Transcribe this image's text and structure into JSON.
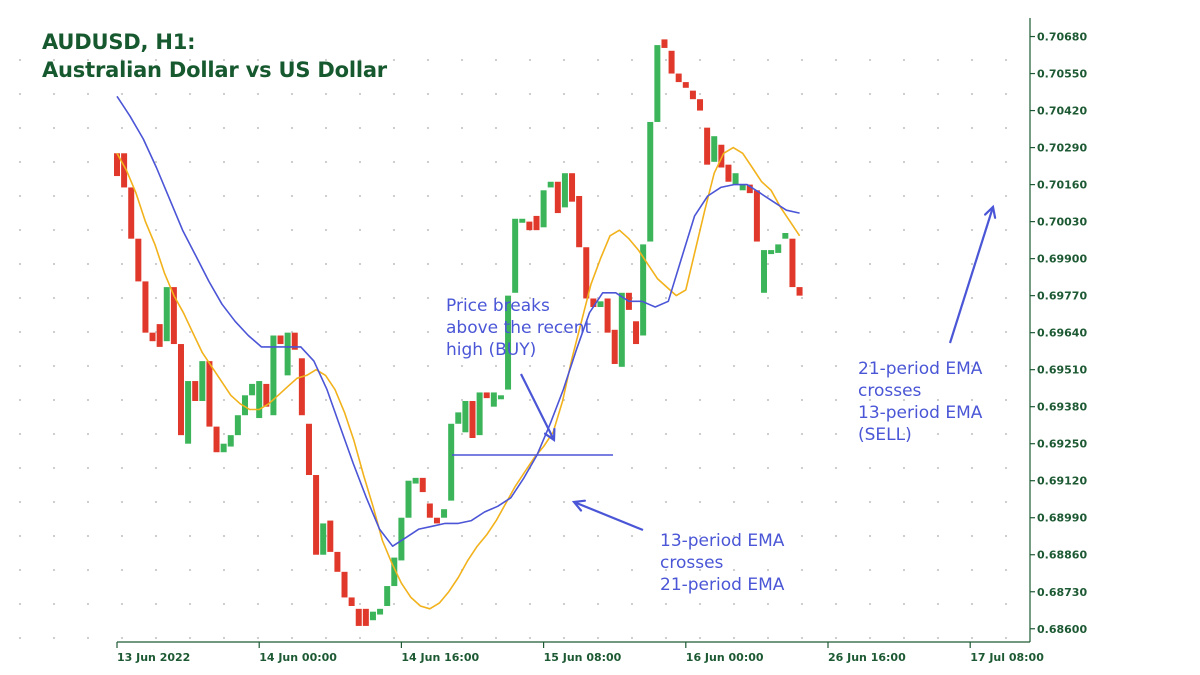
{
  "title": {
    "line1": "AUDUSD, H1:",
    "line2": "Australian Dollar vs  US Dollar"
  },
  "annotations": {
    "buy": [
      "Price breaks",
      "above the recent",
      "high (BUY)"
    ],
    "cross_up": [
      "13-period EMA",
      "crosses",
      "21-period EMA"
    ],
    "cross_down": [
      "21-period EMA",
      "crosses",
      "13-period EMA",
      "(SELL)"
    ]
  },
  "colors": {
    "bull": "#3cb55a",
    "bear": "#e0392b",
    "ema13": "#f2b21c",
    "ema21": "#4b55d6",
    "axis": "#1d5a33",
    "text": "#17592f",
    "annotation": "#4a56d6",
    "grid_dot": "#c9c9c9"
  },
  "chart_data": {
    "type": "candlestick",
    "symbol": "AUDUSD",
    "timeframe": "H1",
    "y_ticks": [
      "0.70680",
      "0.70550",
      "0.70420",
      "0.70290",
      "0.70160",
      "0.70030",
      "0.69900",
      "0.69770",
      "0.69640",
      "0.69510",
      "0.69380",
      "0.69250",
      "0.69120",
      "0.68990",
      "0.68860",
      "0.68730",
      "0.68600"
    ],
    "ylim": [
      0.6855,
      0.7071
    ],
    "x_ticks": [
      "13 Jun 2022",
      "14 Jun 00:00",
      "14 Jun 16:00",
      "15 Jun 08:00",
      "16 Jun 00:00",
      "26 Jun 16:00",
      "17 Jul 08:00"
    ],
    "x_tick_bar_index": [
      0,
      20,
      40,
      60,
      80,
      100,
      120
    ],
    "grid": "dotted",
    "candles": [
      [
        0.7027,
        0.7019,
        0.7019,
        0.7019
      ],
      [
        0.7027,
        0.7015,
        0.7015,
        0.7015
      ],
      [
        0.7015,
        0.6997,
        0.6997,
        0.6997
      ],
      [
        0.6997,
        0.6982,
        0.6982,
        0.6982
      ],
      [
        0.6982,
        0.6964,
        0.6964,
        0.6964
      ],
      [
        0.6964,
        0.6961,
        0.6961,
        0.6961
      ],
      [
        0.6967,
        0.6959,
        0.6959,
        0.6959
      ],
      [
        0.6961,
        0.698,
        0.6961,
        0.698
      ],
      [
        0.698,
        0.696,
        0.696,
        0.696
      ],
      [
        0.696,
        0.6928,
        0.6928,
        0.6928
      ],
      [
        0.6925,
        0.6947,
        0.6925,
        0.6947
      ],
      [
        0.6947,
        0.694,
        0.694,
        0.694
      ],
      [
        0.694,
        0.6954,
        0.694,
        0.6954
      ],
      [
        0.6954,
        0.6931,
        0.6931,
        0.6931
      ],
      [
        0.6931,
        0.6922,
        0.6922,
        0.6922
      ],
      [
        0.6922,
        0.6925,
        0.6922,
        0.6925
      ],
      [
        0.6924,
        0.6928,
        0.6924,
        0.6928
      ],
      [
        0.6928,
        0.6935,
        0.6928,
        0.6935
      ],
      [
        0.6935,
        0.6942,
        0.6935,
        0.6942
      ],
      [
        0.6942,
        0.6946,
        0.6942,
        0.6946
      ],
      [
        0.6934,
        0.6947,
        0.6934,
        0.6947
      ],
      [
        0.6946,
        0.6938,
        0.6938,
        0.6938
      ],
      [
        0.6935,
        0.6963,
        0.6935,
        0.6963
      ],
      [
        0.6963,
        0.696,
        0.696,
        0.696
      ],
      [
        0.6949,
        0.6964,
        0.6949,
        0.6964
      ],
      [
        0.6964,
        0.6958,
        0.6958,
        0.6958
      ],
      [
        0.6955,
        0.6935,
        0.6935,
        0.6935
      ],
      [
        0.6932,
        0.6914,
        0.6914,
        0.6914
      ],
      [
        0.6914,
        0.6886,
        0.6886,
        0.6886
      ],
      [
        0.6886,
        0.6897,
        0.6886,
        0.6897
      ],
      [
        0.6898,
        0.6887,
        0.6887,
        0.6887
      ],
      [
        0.6887,
        0.688,
        0.688,
        0.688
      ],
      [
        0.688,
        0.6871,
        0.6871,
        0.6871
      ],
      [
        0.6871,
        0.6868,
        0.6868,
        0.6868
      ],
      [
        0.6867,
        0.6861,
        0.6861,
        0.6861
      ],
      [
        0.6867,
        0.6861,
        0.6861,
        0.6861
      ],
      [
        0.6863,
        0.6866,
        0.6863,
        0.6866
      ],
      [
        0.6865,
        0.6867,
        0.6865,
        0.6867
      ],
      [
        0.6868,
        0.6875,
        0.6868,
        0.6875
      ],
      [
        0.6875,
        0.6885,
        0.6875,
        0.6885
      ],
      [
        0.6884,
        0.6899,
        0.6884,
        0.6899
      ],
      [
        0.6899,
        0.6912,
        0.6899,
        0.6912
      ],
      [
        0.6911,
        0.6913,
        0.6911,
        0.6913
      ],
      [
        0.6913,
        0.6908,
        0.6908,
        0.6908
      ],
      [
        0.6904,
        0.6899,
        0.6899,
        0.6899
      ],
      [
        0.6899,
        0.6897,
        0.6897,
        0.6897
      ],
      [
        0.6899,
        0.6902,
        0.6899,
        0.6902
      ],
      [
        0.6905,
        0.6932,
        0.6905,
        0.6932
      ],
      [
        0.6932,
        0.6936,
        0.6932,
        0.6936
      ],
      [
        0.6929,
        0.694,
        0.6929,
        0.694
      ],
      [
        0.694,
        0.6927,
        0.6927,
        0.6927
      ],
      [
        0.6928,
        0.6943,
        0.6928,
        0.6943
      ],
      [
        0.6943,
        0.6941,
        0.6941,
        0.6941
      ],
      [
        0.6938,
        0.6943,
        0.6938,
        0.6943
      ],
      [
        0.6942,
        0.6942,
        0.6942,
        0.6942
      ],
      [
        0.6944,
        0.6977,
        0.6944,
        0.6977
      ],
      [
        0.6978,
        0.7004,
        0.6978,
        0.7004
      ],
      [
        0.7003,
        0.7004,
        0.7003,
        0.7004
      ],
      [
        0.7003,
        0.7,
        0.7,
        0.7
      ],
      [
        0.7005,
        0.7,
        0.7,
        0.7
      ],
      [
        0.7001,
        0.7014,
        0.7001,
        0.7014
      ],
      [
        0.7015,
        0.7017,
        0.7015,
        0.7017
      ],
      [
        0.7017,
        0.7006,
        0.7006,
        0.7006
      ],
      [
        0.7008,
        0.702,
        0.7008,
        0.702
      ],
      [
        0.702,
        0.701,
        0.701,
        0.701
      ],
      [
        0.7012,
        0.6994,
        0.6994,
        0.6994
      ],
      [
        0.6994,
        0.6976,
        0.6976,
        0.6976
      ],
      [
        0.6976,
        0.6973,
        0.6973,
        0.6973
      ],
      [
        0.6973,
        0.6975,
        0.6973,
        0.6975
      ],
      [
        0.6976,
        0.6964,
        0.6964,
        0.6964
      ],
      [
        0.6965,
        0.6953,
        0.6953,
        0.6953
      ],
      [
        0.6952,
        0.6978,
        0.6952,
        0.6978
      ],
      [
        0.6978,
        0.6972,
        0.6972,
        0.6972
      ],
      [
        0.6968,
        0.696,
        0.696,
        0.696
      ],
      [
        0.6963,
        0.6995,
        0.6963,
        0.6995
      ],
      [
        0.6996,
        0.7038,
        0.6996,
        0.7038
      ],
      [
        0.7038,
        0.7065,
        0.7038,
        0.7065
      ],
      [
        0.7067,
        0.7064,
        0.7064,
        0.7064
      ],
      [
        0.7063,
        0.7055,
        0.7055,
        0.7055
      ],
      [
        0.7055,
        0.7052,
        0.7052,
        0.7052
      ],
      [
        0.7052,
        0.705,
        0.705,
        0.705
      ],
      [
        0.7049,
        0.7046,
        0.7046,
        0.7046
      ],
      [
        0.7046,
        0.7042,
        0.7042,
        0.7042
      ],
      [
        0.7036,
        0.7023,
        0.7023,
        0.7023
      ],
      [
        0.7024,
        0.7033,
        0.7024,
        0.7033
      ],
      [
        0.703,
        0.7022,
        0.7022,
        0.7022
      ],
      [
        0.7023,
        0.7017,
        0.7017,
        0.7017
      ],
      [
        0.7016,
        0.702,
        0.7016,
        0.702
      ],
      [
        0.7014,
        0.7016,
        0.7014,
        0.7016
      ],
      [
        0.7016,
        0.7013,
        0.7013,
        0.7013
      ],
      [
        0.7014,
        0.6996,
        0.6996,
        0.6996
      ],
      [
        0.6978,
        0.6993,
        0.6978,
        0.6993
      ],
      [
        0.6993,
        0.6993,
        0.6993,
        0.6993
      ],
      [
        0.6992,
        0.6995,
        0.6992,
        0.6995
      ],
      [
        0.6997,
        0.6999,
        0.6997,
        0.6999
      ],
      [
        0.6997,
        0.698,
        0.698,
        0.698
      ],
      [
        0.698,
        0.6977,
        0.6977,
        0.6977
      ]
    ],
    "ema13": [
      0.7027,
      0.7021,
      0.7013,
      0.7003,
      0.6995,
      0.6985,
      0.6977,
      0.6971,
      0.6964,
      0.6957,
      0.6952,
      0.6947,
      0.6942,
      0.6939,
      0.6937,
      0.6937,
      0.6939,
      0.6942,
      0.6945,
      0.6948,
      0.6949,
      0.6951,
      0.6949,
      0.6944,
      0.6936,
      0.6926,
      0.6914,
      0.6903,
      0.6891,
      0.6883,
      0.6876,
      0.6871,
      0.6868,
      0.6867,
      0.6869,
      0.6873,
      0.6878,
      0.6884,
      0.6889,
      0.6893,
      0.6898,
      0.6904,
      0.691,
      0.6915,
      0.692,
      0.6924,
      0.6929,
      0.694,
      0.6955,
      0.6968,
      0.6981,
      0.699,
      0.6998,
      0.7,
      0.6997,
      0.6993,
      0.6988,
      0.6983,
      0.698,
      0.6977,
      0.6979,
      0.6993,
      0.7007,
      0.702,
      0.7027,
      0.7029,
      0.7027,
      0.7022,
      0.7017,
      0.7014,
      0.7008,
      0.7003,
      0.6998
    ],
    "ema21": [
      0.7047,
      0.704,
      0.7032,
      0.7022,
      0.7011,
      0.7,
      0.6991,
      0.6982,
      0.6974,
      0.6968,
      0.6963,
      0.6959,
      0.6959,
      0.6959,
      0.6959,
      0.6954,
      0.6944,
      0.6931,
      0.6918,
      0.6906,
      0.6895,
      0.6889,
      0.6892,
      0.6895,
      0.6896,
      0.6897,
      0.6897,
      0.6898,
      0.6901,
      0.6903,
      0.6906,
      0.6913,
      0.6921,
      0.6932,
      0.6944,
      0.6958,
      0.6971,
      0.6978,
      0.6978,
      0.6975,
      0.6975,
      0.6973,
      0.6975,
      0.699,
      0.7005,
      0.7012,
      0.7015,
      0.7016,
      0.7016,
      0.7013,
      0.701,
      0.7007,
      0.7006
    ],
    "ema_x": {
      "ema13_start_index": 0,
      "ema21_start_index": 0
    }
  }
}
